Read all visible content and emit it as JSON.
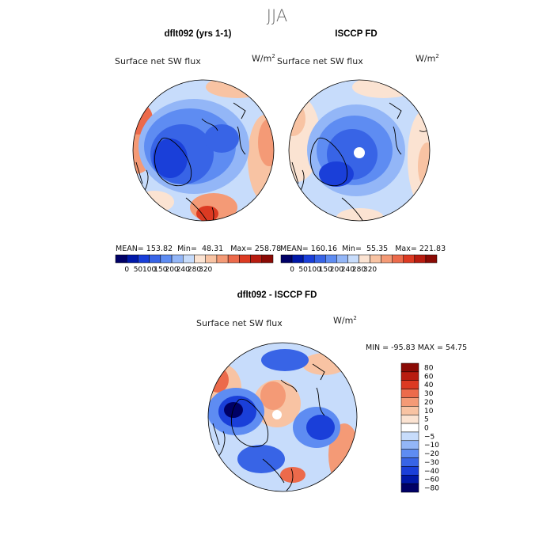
{
  "header": {
    "season": "JJA"
  },
  "panels": [
    {
      "title": "dflt092 (yrs 1-1)",
      "subtitle": "Surface net SW flux",
      "units_base": "W/m",
      "units_exp": "2",
      "mean_label": "MEAN=",
      "mean": "153.82",
      "min_label": "Min=",
      "min": "48.31",
      "max_label": "Max=",
      "max": "258.78"
    },
    {
      "title": "ISCCP FD",
      "subtitle": "Surface net SW flux",
      "units_base": "W/m",
      "units_exp": "2",
      "mean_label": "MEAN=",
      "mean": "160.16",
      "min_label": "Min=",
      "min": "55.35",
      "max_label": "Max=",
      "max": "221.83"
    }
  ],
  "diff_panel": {
    "title": "dflt092 - ISCCP FD",
    "subtitle": "Surface net SW flux",
    "units_base": "W/m",
    "units_exp": "2",
    "stats": "MIN = -95.83 MAX =  54.75"
  },
  "chart_data": [
    {
      "type": "heatmap",
      "projection": "north-polar-stereographic",
      "title": "dflt092 (yrs 1-1)",
      "field": "Surface net SW flux",
      "units": "W/m2",
      "season": "JJA",
      "stats": {
        "mean": 153.82,
        "min": 48.31,
        "max": 258.78
      },
      "colorbar": {
        "orientation": "horizontal",
        "colors": [
          "#000066",
          "#0018a8",
          "#1a3fd9",
          "#3864e6",
          "#5e8cf2",
          "#93b6f7",
          "#c7dcfb",
          "#fbe3d2",
          "#f8c3a3",
          "#f49a76",
          "#ec6a4b",
          "#dc3a22",
          "#b81c10",
          "#8a0a05"
        ],
        "tick_labels": [
          "0",
          "50",
          "100",
          "150",
          "200",
          "240",
          "280",
          "320"
        ]
      }
    },
    {
      "type": "heatmap",
      "projection": "north-polar-stereographic",
      "title": "ISCCP FD",
      "field": "Surface net SW flux",
      "units": "W/m2",
      "season": "JJA",
      "stats": {
        "mean": 160.16,
        "min": 55.35,
        "max": 221.83
      },
      "colorbar": {
        "orientation": "horizontal",
        "colors": [
          "#000066",
          "#0018a8",
          "#1a3fd9",
          "#3864e6",
          "#5e8cf2",
          "#93b6f7",
          "#c7dcfb",
          "#fbe3d2",
          "#f8c3a3",
          "#f49a76",
          "#ec6a4b",
          "#dc3a22",
          "#b81c10",
          "#8a0a05"
        ],
        "tick_labels": [
          "0",
          "50",
          "100",
          "150",
          "200",
          "240",
          "280",
          "320"
        ]
      }
    },
    {
      "type": "heatmap",
      "projection": "north-polar-stereographic",
      "title": "dflt092 - ISCCP FD",
      "field": "Surface net SW flux",
      "units": "W/m2",
      "season": "JJA",
      "stats": {
        "min": -95.83,
        "max": 54.75
      },
      "colorbar": {
        "orientation": "vertical",
        "colors": [
          "#8a0a05",
          "#b81c10",
          "#dc3a22",
          "#ec6a4b",
          "#f49a76",
          "#f8c3a3",
          "#fbe3d2",
          "#ffffff",
          "#c7dcfb",
          "#93b6f7",
          "#5e8cf2",
          "#3864e6",
          "#1a3fd9",
          "#0018a8",
          "#000066"
        ],
        "tick_labels": [
          "80",
          "60",
          "40",
          "30",
          "20",
          "10",
          "5",
          "0",
          "−5",
          "−10",
          "−20",
          "−30",
          "−40",
          "−60",
          "−80"
        ]
      }
    }
  ]
}
